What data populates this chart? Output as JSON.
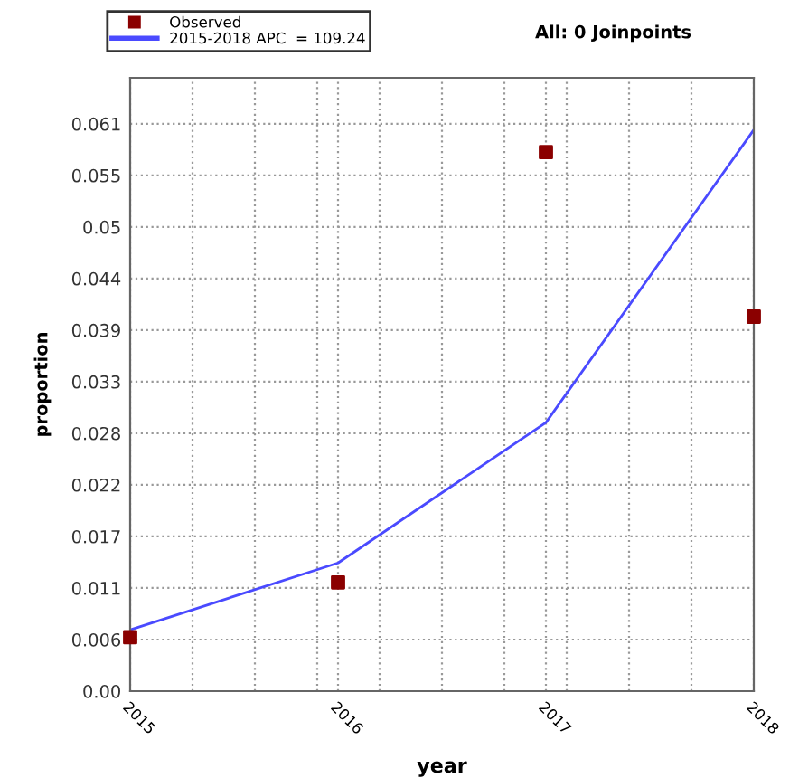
{
  "chart_data": {
    "type": "scatter",
    "title": "All: 0 Joinpoints",
    "xlabel": "year",
    "ylabel": "proportion",
    "x": [
      2015,
      2016,
      2017,
      2018
    ],
    "series": [
      {
        "name": "Observed",
        "marker": "square",
        "color": "#8b0000",
        "values": [
          0.0058,
          0.0117,
          0.058,
          0.0403
        ]
      },
      {
        "name": "2015-2018 APC  = 109.24",
        "type": "line",
        "marker": "none",
        "color": "#4a4aff",
        "values": [
          0.0066,
          0.0138,
          0.0289,
          0.0604
        ]
      }
    ],
    "xlim": [
      2015,
      2018
    ],
    "xticks": [
      2015,
      {
        "value": 2015.3,
        "label": null
      },
      {
        "value": 2015.6,
        "label": null
      },
      {
        "value": 2015.9,
        "label": null
      },
      2016,
      {
        "value": 2016.2,
        "label": null
      },
      {
        "value": 2016.5,
        "label": null
      },
      {
        "value": 2016.8,
        "label": null
      },
      2017,
      {
        "value": 2017.1,
        "label": null
      },
      {
        "value": 2017.4,
        "label": null
      },
      {
        "value": 2017.7,
        "label": null
      },
      2018
    ],
    "ylim": [
      0,
      0.066
    ],
    "yticks": [
      {
        "value": 0,
        "label": "0.00"
      },
      {
        "value": 0.00555,
        "label": "0.006"
      },
      {
        "value": 0.0111,
        "label": "0.011"
      },
      {
        "value": 0.01665,
        "label": "0.017"
      },
      {
        "value": 0.0222,
        "label": "0.022"
      },
      {
        "value": 0.02775,
        "label": "0.028"
      },
      {
        "value": 0.0333,
        "label": "0.033"
      },
      {
        "value": 0.03885,
        "label": "0.039"
      },
      {
        "value": 0.0444,
        "label": "0.044"
      },
      {
        "value": 0.04995,
        "label": "0.05"
      },
      {
        "value": 0.0555,
        "label": "0.055"
      },
      {
        "value": 0.06105,
        "label": "0.061"
      }
    ],
    "grid": true,
    "legend": "top left"
  }
}
